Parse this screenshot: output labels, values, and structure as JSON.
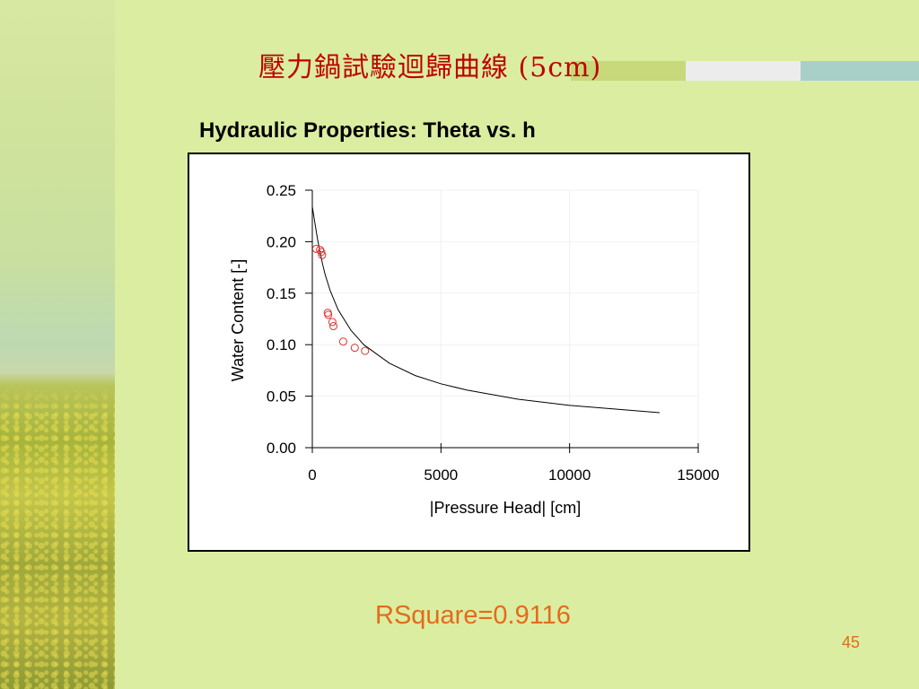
{
  "slide": {
    "title": "壓力鍋試驗迴歸曲線  (5cm)",
    "chart_heading": "Hydraulic Properties:  Theta vs. h",
    "rsquare": "RSquare=0.9116",
    "page_number": "45"
  },
  "colors": {
    "background": "#dbeda0",
    "title": "#c00000",
    "accent_orange": "#e26c1c",
    "marker": "#e03030"
  },
  "chart_data": {
    "type": "scatter",
    "title": "Hydraulic Properties:  Theta vs. h",
    "xlabel": "|Pressure Head| [cm]",
    "ylabel": "Water Content [-]",
    "xlim": [
      0,
      15000
    ],
    "ylim": [
      0,
      0.25
    ],
    "x_ticks": [
      "0",
      "5000",
      "10000",
      "15000"
    ],
    "y_ticks": [
      "0.00",
      "0.05",
      "0.10",
      "0.15",
      "0.20",
      "0.25"
    ],
    "grid": true,
    "series": [
      {
        "kind": "points",
        "x": [
          150,
          300,
          350,
          380,
          600,
          620,
          780,
          820,
          1200,
          1650,
          2050
        ],
        "y": [
          0.193,
          0.192,
          0.19,
          0.187,
          0.131,
          0.129,
          0.122,
          0.118,
          0.103,
          0.097,
          0.094
        ]
      },
      {
        "kind": "fitted-curve",
        "x": [
          0,
          100,
          200,
          300,
          400,
          500,
          700,
          1000,
          1500,
          2000,
          3000,
          4000,
          5000,
          6000,
          8000,
          10000,
          12000,
          13500
        ],
        "y": [
          0.234,
          0.218,
          0.203,
          0.19,
          0.178,
          0.168,
          0.152,
          0.134,
          0.114,
          0.1,
          0.082,
          0.07,
          0.062,
          0.056,
          0.047,
          0.041,
          0.037,
          0.034
        ]
      }
    ]
  }
}
